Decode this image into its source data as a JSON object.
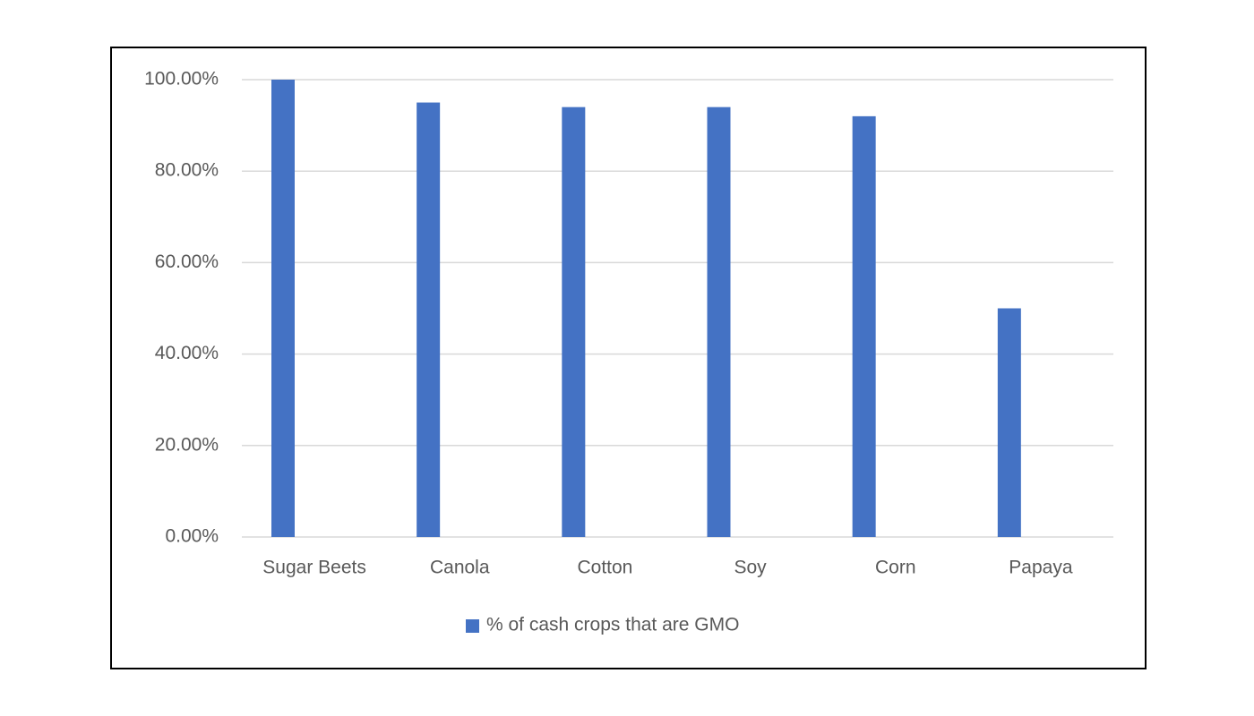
{
  "chart_data": {
    "type": "bar",
    "categories": [
      "Sugar Beets",
      "Canola",
      "Cotton",
      "Soy",
      "Corn",
      "Papaya"
    ],
    "series": [
      {
        "name": "% of cash crops that are GMO",
        "color": "#4472c4",
        "values": [
          100,
          95,
          94,
          94,
          92,
          50
        ]
      }
    ],
    "ylim": [
      0,
      100
    ],
    "yticks": [
      {
        "value": 0,
        "label": "0.00%"
      },
      {
        "value": 20,
        "label": "20.00%"
      },
      {
        "value": 40,
        "label": "40.00%"
      },
      {
        "value": 60,
        "label": "60.00%"
      },
      {
        "value": 80,
        "label": "80.00%"
      },
      {
        "value": 100,
        "label": "100.00%"
      }
    ],
    "grid": true,
    "legend": "bottom"
  }
}
